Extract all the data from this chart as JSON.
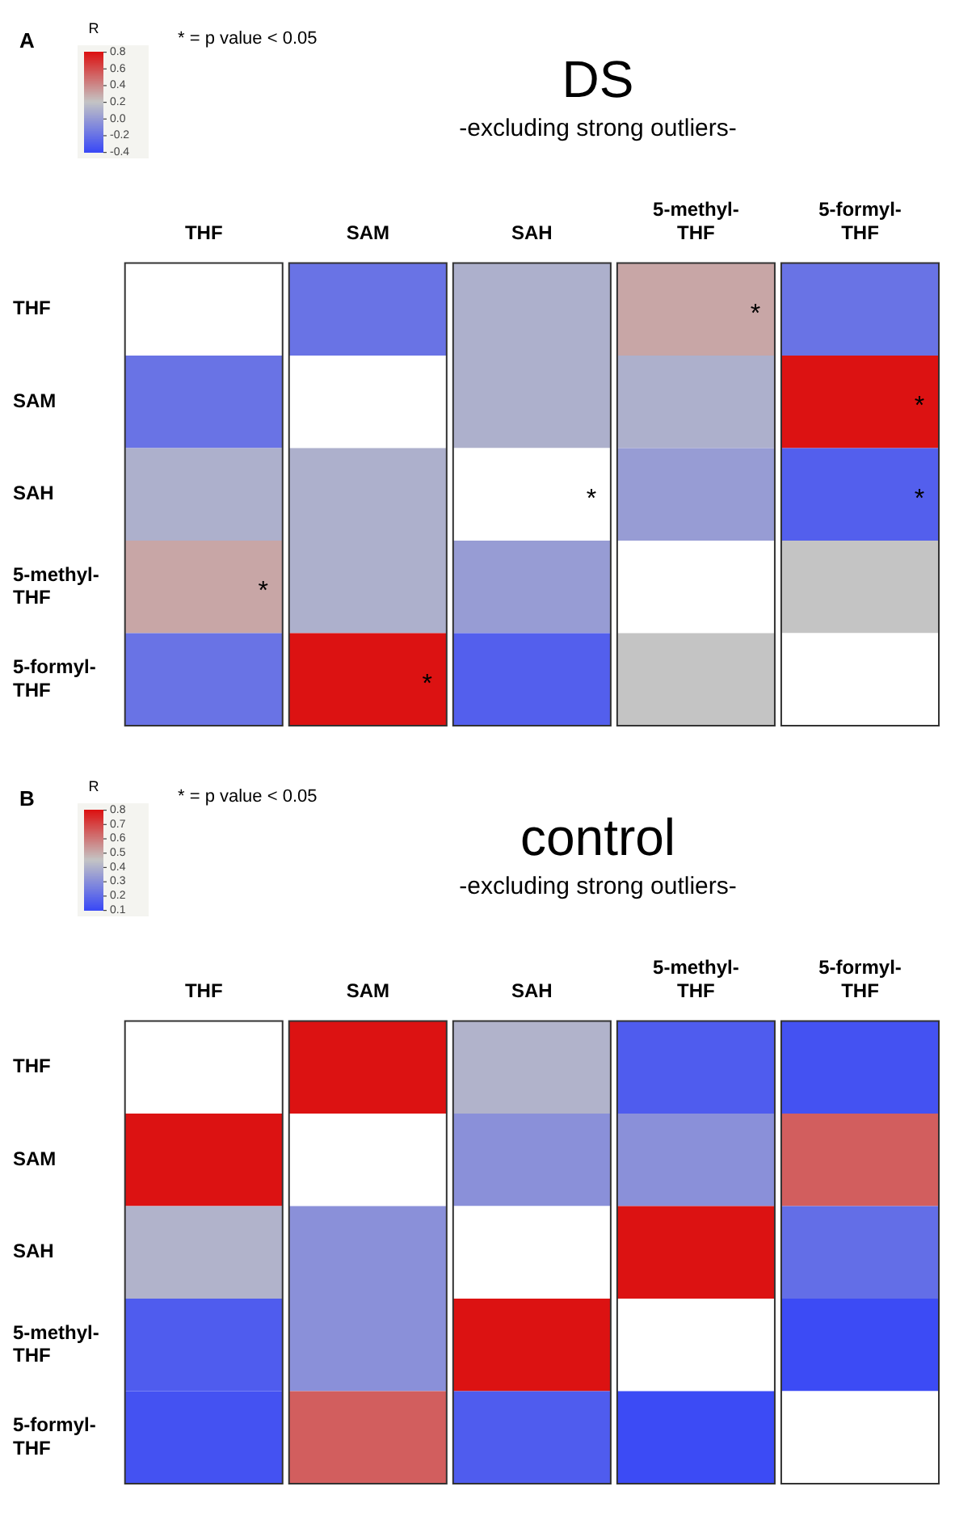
{
  "chart_data": [
    {
      "type": "heatmap",
      "title": "DS",
      "subtitle": "-excluding strong outliers-",
      "clabel": "R",
      "categories": [
        "THF",
        "SAM",
        "SAH",
        "5-methyl-THF",
        "5-formyl-THF"
      ],
      "y_categories": [
        "THF",
        "SAM",
        "SAH",
        "5-methyl-THF",
        "5-formyl-THF"
      ],
      "cells": [
        [
          null,
          -0.2,
          0.1,
          0.3,
          -0.2
        ],
        [
          -0.2,
          null,
          0.1,
          0.1,
          0.8
        ],
        [
          0.1,
          0.1,
          null,
          0.0,
          -0.3
        ],
        [
          0.3,
          0.1,
          0.0,
          null,
          0.2
        ],
        [
          -0.2,
          0.8,
          -0.3,
          0.2,
          null
        ]
      ],
      "clim": [
        -0.4,
        0.8
      ],
      "cticks": [
        {
          "value": -0.4,
          "label": "-0.4"
        },
        {
          "value": -0.2,
          "label": "-0.2"
        },
        {
          "value": 0,
          "label": "0.0"
        },
        {
          "value": 0.2,
          "label": "0.2"
        },
        {
          "value": 0.4,
          "label": "0.4"
        },
        {
          "value": 0.6,
          "label": "0.6"
        },
        {
          "value": 0.8,
          "label": "0.8"
        }
      ],
      "cell_labels": [
        [
          null,
          null,
          null,
          "*",
          null
        ],
        [
          null,
          null,
          null,
          null,
          "*"
        ],
        [
          null,
          null,
          "*",
          null,
          "*"
        ],
        [
          "*",
          null,
          null,
          null,
          null
        ],
        [
          null,
          "*",
          null,
          null,
          null
        ]
      ],
      "annotations": [
        "A",
        "* = p value < 0.05"
      ]
    },
    {
      "type": "heatmap",
      "title": "control",
      "subtitle": "-excluding strong outliers-",
      "clabel": "R",
      "categories": [
        "THF",
        "SAM",
        "SAH",
        "5-methyl-THF",
        "5-formyl-THF"
      ],
      "y_categories": [
        "THF",
        "SAM",
        "SAH",
        "5-methyl-THF",
        "5-formyl-THF"
      ],
      "cells": [
        [
          null,
          0.8,
          0.4,
          0.15,
          0.12
        ],
        [
          0.8,
          null,
          0.3,
          0.3,
          0.65
        ],
        [
          0.4,
          0.3,
          null,
          0.8,
          0.2
        ],
        [
          0.15,
          0.3,
          0.8,
          null,
          0.1
        ],
        [
          0.12,
          0.65,
          0.15,
          0.1,
          null
        ]
      ],
      "clim": [
        0.1,
        0.8
      ],
      "cticks": [
        0.1,
        0.2,
        0.3,
        0.4,
        0.5,
        0.6,
        0.7,
        0.8
      ],
      "annotations": [
        "B",
        "* = p value < 0.05"
      ]
    }
  ]
}
